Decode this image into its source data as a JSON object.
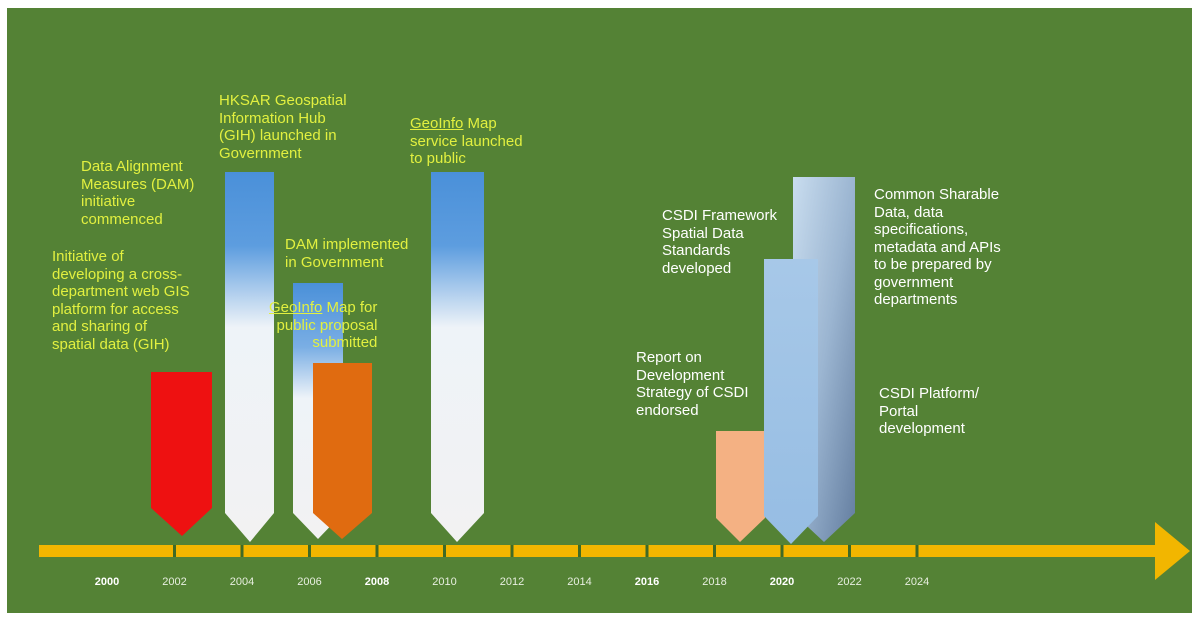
{
  "colors": {
    "background": "#548235",
    "axis": "#f2b600",
    "highlight_text": "#e2f040",
    "plain_text": "#ffffff",
    "red_arrow": "#ee1111",
    "white_arrow_top": "#4a90d9",
    "orange_arrow": "#e06b10",
    "peach_arrow": "#f4b183",
    "light_blue_arrow": "#9dc3e6",
    "steel_arrow_top": "#bdd7ee",
    "steel_arrow_bottom": "#6f88a8"
  },
  "timeline": {
    "year_labels": [
      "2000",
      "2002",
      "2004",
      "2006",
      "2008",
      "2010",
      "2012",
      "2014",
      "2016",
      "2018",
      "2020",
      "2022",
      "2024"
    ],
    "bold_years": [
      "2000",
      "2008",
      "2016",
      "2020"
    ]
  },
  "milestones": [
    {
      "id": "gih-initiative",
      "text": "Initiative of\ndeveloping a cross-\ndepartment web GIS\nplatform for access\nand sharing of\nspatial data (GIH)",
      "color": "yellow",
      "arrow_style": "red"
    },
    {
      "id": "dam-commenced",
      "text": "Data Alignment\nMeasures (DAM)\ninitiative\ncommenced",
      "color": "yellow",
      "arrow_style": "blue-white"
    },
    {
      "id": "gih-launched",
      "text": "HKSAR Geospatial\nInformation Hub\n(GIH) launched in\nGovernment",
      "color": "yellow",
      "arrow_style": "blue-white"
    },
    {
      "id": "dam-implemented",
      "text": "DAM implemented\nin Government",
      "color": "yellow",
      "arrow_style": "blue-white"
    },
    {
      "id": "geoinfo-proposal",
      "text_parts": [
        "GeoInfo",
        " Map for\npublic proposal\nsubmitted"
      ],
      "color": "yellow",
      "arrow_style": "orange"
    },
    {
      "id": "geoinfo-launched",
      "text_parts": [
        "GeoInfo",
        " Map\nservice launched\nto public"
      ],
      "color": "yellow",
      "arrow_style": "blue-white"
    },
    {
      "id": "csdi-report",
      "text": "Report on\nDevelopment\nStrategy of CSDI\nendorsed",
      "color": "white",
      "arrow_style": "peach"
    },
    {
      "id": "csdi-framework",
      "text": "CSDI Framework\nSpatial Data\nStandards\ndeveloped",
      "color": "white",
      "arrow_style": "light-blue"
    },
    {
      "id": "sharable-data",
      "text": "Common Sharable\nData, data\nspecifications,\nmetadata and APIs\nto be prepared by\ngovernment\ndepartments",
      "color": "white",
      "arrow_style": "steel"
    },
    {
      "id": "csdi-platform",
      "text": "CSDI Platform/\nPortal\ndevelopment",
      "color": "white",
      "arrow_style": "steel"
    }
  ]
}
